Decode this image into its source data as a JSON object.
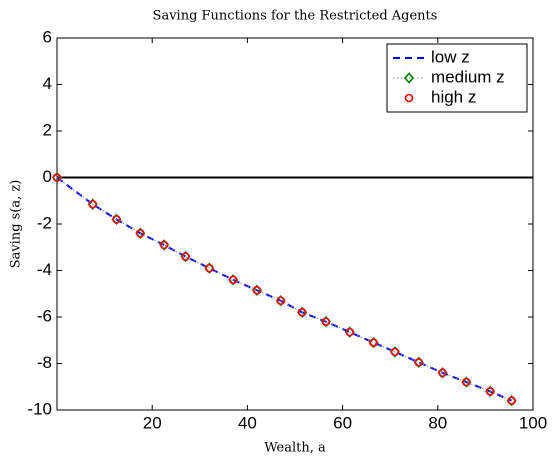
{
  "chart_data": {
    "type": "line",
    "title": "Saving Functions for the Restricted Agents",
    "x_label": "Wealth, a",
    "y_label": "Saving s(a, z)",
    "x": [
      0,
      7.5,
      12.5,
      17.5,
      22.5,
      27,
      32,
      37,
      42,
      47,
      51.5,
      56.5,
      61.5,
      66.5,
      71,
      76,
      81,
      86,
      91,
      95.5
    ],
    "series": [
      {
        "name": "low z",
        "color": "#0000ff",
        "style": "dashed",
        "marker": "none",
        "values": [
          0,
          -1.15,
          -1.8,
          -2.4,
          -2.9,
          -3.4,
          -3.9,
          -4.4,
          -4.85,
          -5.3,
          -5.8,
          -6.2,
          -6.65,
          -7.1,
          -7.5,
          -7.95,
          -8.4,
          -8.8,
          -9.2,
          -9.6
        ]
      },
      {
        "name": "medium z",
        "color": "#007f00",
        "style": "dotted",
        "marker": "diamond",
        "values": [
          0,
          -1.15,
          -1.8,
          -2.4,
          -2.9,
          -3.4,
          -3.9,
          -4.4,
          -4.85,
          -5.3,
          -5.8,
          -6.2,
          -6.65,
          -7.1,
          -7.5,
          -7.95,
          -8.4,
          -8.8,
          -9.2,
          -9.6
        ]
      },
      {
        "name": "high z",
        "color": "#ff0000",
        "style": "none",
        "marker": "circle",
        "values": [
          0,
          -1.15,
          -1.8,
          -2.4,
          -2.9,
          -3.4,
          -3.9,
          -4.4,
          -4.85,
          -5.3,
          -5.8,
          -6.2,
          -6.65,
          -7.1,
          -7.5,
          -7.95,
          -8.4,
          -8.8,
          -9.2,
          -9.6
        ]
      }
    ],
    "hline": 0,
    "xlim": [
      0,
      100
    ],
    "xticks": [
      20,
      40,
      60,
      80,
      100
    ],
    "ylim": [
      -10,
      6
    ],
    "yticks": [
      -10,
      -8,
      -6,
      -4,
      -2,
      0,
      2,
      4,
      6
    ],
    "legend": "upper right"
  }
}
